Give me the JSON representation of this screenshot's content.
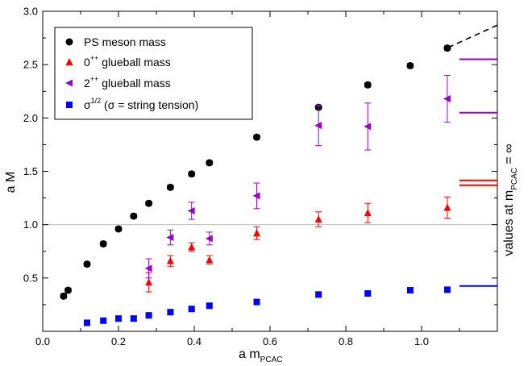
{
  "chart_data": {
    "type": "scatter",
    "xlabel": {
      "main": "a m",
      "sub": "PCAC"
    },
    "ylabel": "a M",
    "right_label": {
      "main": "values at m",
      "sub": "PCAC",
      "tail": " = ∞"
    },
    "xlim": [
      0.0,
      1.2
    ],
    "ylim": [
      0.0,
      3.0
    ],
    "x_ticks": [
      0.0,
      0.2,
      0.4,
      0.6,
      0.8,
      1.0
    ],
    "x_tick_labels": [
      "0.0",
      "0.2",
      "0.4",
      "0.6",
      "0.8",
      "1.0"
    ],
    "y_ticks": [
      0.5,
      1.0,
      1.5,
      2.0,
      2.5,
      3.0
    ],
    "y_tick_labels": [
      "0.5",
      "1.0",
      "1.5",
      "2.0",
      "2.5",
      "3.0"
    ],
    "reference_line_y": 1.0,
    "legend_position": "top-left",
    "series": [
      {
        "name": "PS meson mass",
        "color": "#000000",
        "marker": "circle",
        "points": [
          {
            "x": 0.055,
            "y": 0.33,
            "err": 0.02
          },
          {
            "x": 0.067,
            "y": 0.385,
            "err": 0.02
          },
          {
            "x": 0.117,
            "y": 0.63,
            "err": 0.02
          },
          {
            "x": 0.16,
            "y": 0.82,
            "err": 0.02
          },
          {
            "x": 0.2,
            "y": 0.96,
            "err": 0.02
          },
          {
            "x": 0.24,
            "y": 1.08,
            "err": 0.02
          },
          {
            "x": 0.28,
            "y": 1.2,
            "err": 0.02
          },
          {
            "x": 0.337,
            "y": 1.35,
            "err": 0.02
          },
          {
            "x": 0.393,
            "y": 1.475,
            "err": 0.02
          },
          {
            "x": 0.44,
            "y": 1.58,
            "err": 0.02
          },
          {
            "x": 0.565,
            "y": 1.82,
            "err": 0.02
          },
          {
            "x": 0.728,
            "y": 2.1,
            "err": 0.02
          },
          {
            "x": 0.858,
            "y": 2.31,
            "err": 0.02
          },
          {
            "x": 0.97,
            "y": 2.49,
            "err": 0.02
          },
          {
            "x": 1.068,
            "y": 2.655,
            "err": 0.02
          }
        ]
      },
      {
        "name": "0++ glueball mass",
        "legend_base": "0",
        "legend_sup": "++",
        "legend_rest": " glueball mass",
        "color": "#ff0000",
        "marker": "triangle-up",
        "points": [
          {
            "x": 0.28,
            "y": 0.46,
            "err": 0.09
          },
          {
            "x": 0.337,
            "y": 0.66,
            "err": 0.05
          },
          {
            "x": 0.393,
            "y": 0.79,
            "err": 0.04
          },
          {
            "x": 0.44,
            "y": 0.67,
            "err": 0.04
          },
          {
            "x": 0.565,
            "y": 0.92,
            "err": 0.06
          },
          {
            "x": 0.728,
            "y": 1.05,
            "err": 0.07
          },
          {
            "x": 0.858,
            "y": 1.11,
            "err": 0.09
          },
          {
            "x": 1.068,
            "y": 1.16,
            "err": 0.1
          }
        ]
      },
      {
        "name": "2++ glueball mass",
        "legend_base": "2",
        "legend_sup": "++",
        "legend_rest": " glueball mass",
        "color": "#9900cc",
        "marker": "triangle-left",
        "points": [
          {
            "x": 0.28,
            "y": 0.59,
            "err": 0.09
          },
          {
            "x": 0.337,
            "y": 0.88,
            "err": 0.07
          },
          {
            "x": 0.393,
            "y": 1.13,
            "err": 0.08
          },
          {
            "x": 0.44,
            "y": 0.87,
            "err": 0.06
          },
          {
            "x": 0.565,
            "y": 1.27,
            "err": 0.12
          },
          {
            "x": 0.728,
            "y": 1.93,
            "err": 0.19
          },
          {
            "x": 0.858,
            "y": 1.92,
            "err": 0.22
          },
          {
            "x": 1.068,
            "y": 2.18,
            "err": 0.22
          }
        ]
      },
      {
        "name": "σ1/2 (σ = string tension)",
        "legend_base": "σ",
        "legend_sup": "1/2",
        "legend_rest": " (σ = string tension)",
        "color": "#0000ff",
        "marker": "square",
        "points": [
          {
            "x": 0.117,
            "y": 0.08,
            "err": 0.02
          },
          {
            "x": 0.16,
            "y": 0.1,
            "err": 0.02
          },
          {
            "x": 0.2,
            "y": 0.12,
            "err": 0.02
          },
          {
            "x": 0.24,
            "y": 0.12,
            "err": 0.02
          },
          {
            "x": 0.28,
            "y": 0.15,
            "err": 0.02
          },
          {
            "x": 0.337,
            "y": 0.18,
            "err": 0.02
          },
          {
            "x": 0.393,
            "y": 0.21,
            "err": 0.02
          },
          {
            "x": 0.44,
            "y": 0.24,
            "err": 0.02
          },
          {
            "x": 0.565,
            "y": 0.275,
            "err": 0.02
          },
          {
            "x": 0.728,
            "y": 0.345,
            "err": 0.02
          },
          {
            "x": 0.858,
            "y": 0.355,
            "err": 0.02
          },
          {
            "x": 0.97,
            "y": 0.385,
            "err": 0.02
          },
          {
            "x": 1.068,
            "y": 0.39,
            "err": 0.02
          }
        ]
      }
    ],
    "extrapolation": {
      "color": "#000000",
      "style": "dashed",
      "from": {
        "x": 1.07,
        "y": 2.66
      },
      "to": {
        "x": 1.2,
        "y": 2.87
      }
    },
    "infinite_mass_values": [
      {
        "y": 2.55,
        "color": "#9900cc"
      },
      {
        "y": 2.05,
        "color": "#9900cc"
      },
      {
        "y": 1.415,
        "color": "#ff0000"
      },
      {
        "y": 1.37,
        "color": "#ff0000"
      },
      {
        "y": 0.425,
        "color": "#0000ff"
      }
    ],
    "infinite_values_xrange": [
      1.1,
      1.2
    ]
  }
}
